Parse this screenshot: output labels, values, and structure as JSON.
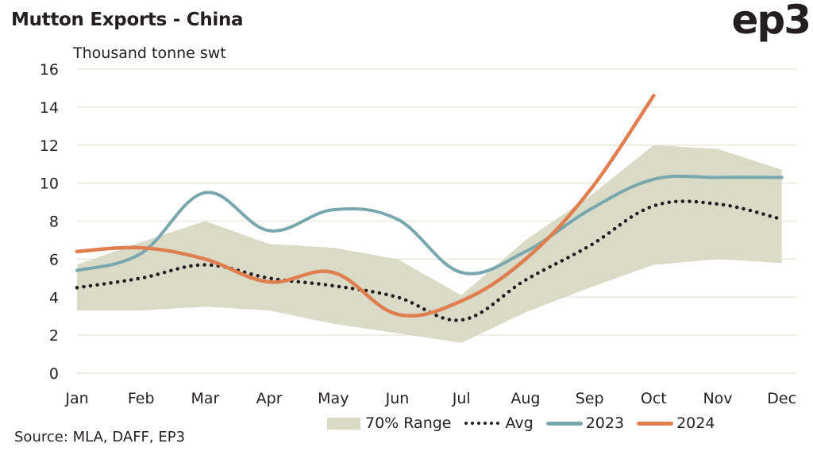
{
  "header": {
    "title": "Mutton Exports - China",
    "logo": "ep3",
    "unit_label": "Thousand tonne swt"
  },
  "footer": {
    "source": "Source: MLA, DAFF, EP3"
  },
  "colors": {
    "range": "#d9dbc7",
    "avg": "#231f20",
    "s2023": "#78a7ae",
    "s2024": "#e07e50",
    "grid": "#eeeee4"
  },
  "chart_data": {
    "type": "line",
    "title": "Mutton Exports - China",
    "ylabel": "Thousand tonne swt",
    "xlabel": "",
    "categories": [
      "Jan",
      "Feb",
      "Mar",
      "Apr",
      "May",
      "Jun",
      "Jul",
      "Aug",
      "Sep",
      "Oct",
      "Nov",
      "Dec"
    ],
    "ylim": [
      0,
      16
    ],
    "yticks": [
      0,
      2,
      4,
      6,
      8,
      10,
      12,
      14,
      16
    ],
    "grid": true,
    "legend_position": "bottom-right",
    "range": {
      "name": "70% Range",
      "upper": [
        5.7,
        6.9,
        8.0,
        6.8,
        6.6,
        6.0,
        4.1,
        7.0,
        9.3,
        12.0,
        11.8,
        10.7
      ],
      "lower": [
        3.3,
        3.3,
        3.5,
        3.3,
        2.6,
        2.1,
        1.6,
        3.2,
        4.5,
        5.7,
        6.0,
        5.8
      ]
    },
    "series": [
      {
        "name": "Avg",
        "style": "dotted",
        "values": [
          4.5,
          5.0,
          5.7,
          5.0,
          4.6,
          4.0,
          2.8,
          4.9,
          6.7,
          8.8,
          8.9,
          8.1
        ]
      },
      {
        "name": "2023",
        "style": "solid",
        "values": [
          5.4,
          6.3,
          9.5,
          7.5,
          8.6,
          8.1,
          5.3,
          6.4,
          8.6,
          10.2,
          10.3,
          10.3
        ]
      },
      {
        "name": "2024",
        "style": "solid",
        "values": [
          6.4,
          6.6,
          6.0,
          4.8,
          5.3,
          3.1,
          3.8,
          6.0,
          9.6,
          14.6,
          null,
          null
        ]
      }
    ]
  },
  "legend": {
    "items": [
      {
        "label": "70% Range"
      },
      {
        "label": "Avg"
      },
      {
        "label": "2023"
      },
      {
        "label": "2024"
      }
    ]
  }
}
